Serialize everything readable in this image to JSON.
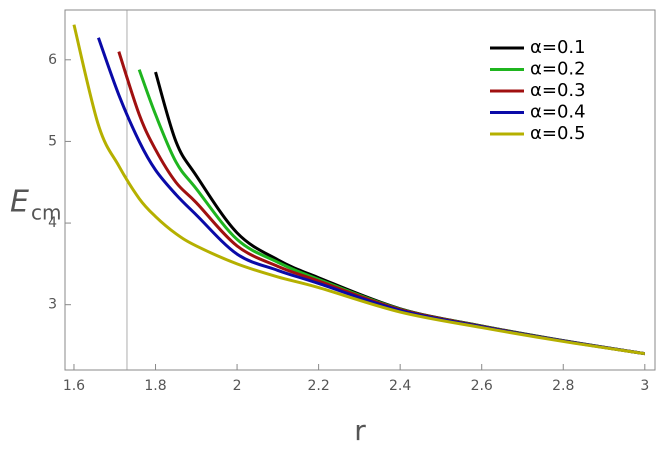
{
  "chart_data": {
    "type": "line",
    "x_label": "r",
    "y_label": "E",
    "y_label_sub": "cm",
    "x": [
      1.6,
      1.66,
      1.71,
      1.76,
      1.8,
      1.85,
      1.9,
      2.0,
      2.1,
      2.2,
      2.4,
      2.6,
      2.8,
      3.0
    ],
    "series": [
      {
        "name": "α=0.1",
        "color": "#000000",
        "values": [
          null,
          null,
          null,
          null,
          5.85,
          5.0,
          4.58,
          3.88,
          3.55,
          3.33,
          2.95,
          2.74,
          2.56,
          2.4
        ]
      },
      {
        "name": "α=0.2",
        "color": "#1fb51f",
        "values": [
          null,
          null,
          null,
          5.88,
          5.33,
          4.75,
          4.42,
          3.8,
          3.52,
          3.31,
          2.945,
          2.738,
          2.558,
          2.4
        ]
      },
      {
        "name": "α=0.3",
        "color": "#a01010",
        "values": [
          null,
          null,
          6.1,
          5.33,
          4.9,
          4.5,
          4.25,
          3.72,
          3.47,
          3.29,
          2.94,
          2.735,
          2.557,
          2.4
        ]
      },
      {
        "name": "α=0.4",
        "color": "#0a0aa8",
        "values": [
          null,
          6.27,
          5.57,
          5.0,
          4.65,
          4.35,
          4.1,
          3.62,
          3.42,
          3.26,
          2.93,
          2.73,
          2.555,
          2.4
        ]
      },
      {
        "name": "α=0.5",
        "color": "#b5b000",
        "values": [
          6.43,
          5.2,
          4.7,
          4.3,
          4.08,
          3.87,
          3.72,
          3.5,
          3.34,
          3.21,
          2.91,
          2.72,
          2.55,
          2.4
        ]
      }
    ],
    "vline": 1.73,
    "xlim": [
      1.578,
      3.025
    ],
    "ylim": [
      2.2,
      6.61
    ],
    "xticks": [
      1.6,
      1.8,
      2.0,
      2.2,
      2.4,
      2.6,
      2.8,
      3.0
    ],
    "yticks": [
      3,
      4,
      5,
      6
    ],
    "legend": "upper right"
  }
}
